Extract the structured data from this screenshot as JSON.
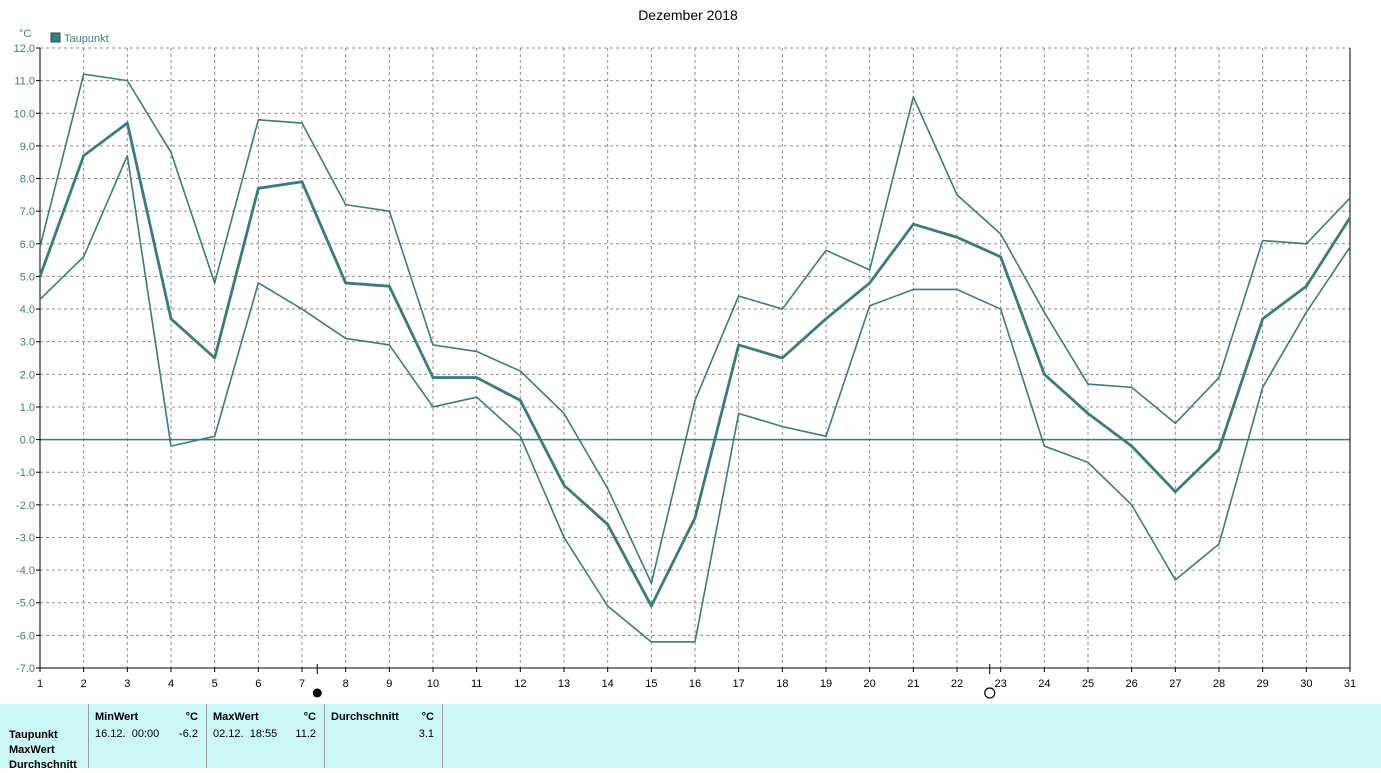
{
  "chart_data": {
    "type": "line",
    "title": "Dezember 2018",
    "ylabel": "°C",
    "legend": "Taupunkt",
    "legend_position": "top-left",
    "grid": true,
    "x": [
      1,
      2,
      3,
      4,
      5,
      6,
      7,
      8,
      9,
      10,
      11,
      12,
      13,
      14,
      15,
      16,
      17,
      18,
      19,
      20,
      21,
      22,
      23,
      24,
      25,
      26,
      27,
      28,
      29,
      30,
      31
    ],
    "xlim": [
      1,
      31
    ],
    "ylim": [
      -7,
      12
    ],
    "yticks": [
      "12.0",
      "11.0",
      "10.0",
      "9.0",
      "8.0",
      "7.0",
      "6.0",
      "5.0",
      "4.0",
      "3.0",
      "2.0",
      "1.0",
      "0.0",
      "-1.0",
      "-2.0",
      "-3.0",
      "-4.0",
      "-5.0",
      "-6.0",
      "-7.0"
    ],
    "series": [
      {
        "name": "Taupunkt",
        "role": "average",
        "values": [
          5.0,
          8.7,
          9.7,
          3.7,
          2.5,
          7.7,
          7.9,
          4.8,
          4.7,
          1.9,
          1.9,
          1.2,
          -1.4,
          -2.6,
          -5.1,
          -2.4,
          2.9,
          2.5,
          3.7,
          4.8,
          6.6,
          6.2,
          5.6,
          2.0,
          0.8,
          -0.2,
          -1.6,
          -0.3,
          3.7,
          4.7,
          6.8
        ]
      },
      {
        "role": "max",
        "values": [
          5.9,
          11.2,
          11.0,
          8.8,
          4.8,
          9.8,
          9.7,
          7.2,
          7.0,
          2.9,
          2.7,
          2.1,
          0.8,
          -1.5,
          -4.4,
          1.2,
          4.4,
          4.0,
          5.8,
          5.2,
          10.5,
          7.5,
          6.3,
          3.9,
          1.7,
          1.6,
          0.5,
          1.9,
          6.1,
          6.0,
          7.4
        ]
      },
      {
        "role": "min",
        "values": [
          4.3,
          5.6,
          8.7,
          -0.2,
          0.1,
          4.8,
          4.0,
          3.1,
          2.9,
          1.0,
          1.3,
          0.1,
          -3.0,
          -5.1,
          -6.2,
          -6.2,
          0.8,
          0.4,
          0.1,
          4.1,
          4.6,
          4.6,
          4.0,
          -0.2,
          -0.7,
          -2.0,
          -4.3,
          -3.2,
          1.6,
          3.9,
          5.9
        ]
      }
    ],
    "markers": [
      {
        "symbol": "filled-circle",
        "position": 7.35
      },
      {
        "symbol": "open-circle",
        "position": 22.75
      }
    ],
    "colors": {
      "series": "#3b7b7b",
      "zero_line": "#3b7b7b",
      "grid": "#8c8c8c",
      "axis": "#000000",
      "panel": "#ccf7f7"
    }
  },
  "summary": {
    "row_labels": [
      "Taupunkt",
      "MaxWert",
      "Durchschnitt"
    ],
    "min": {
      "header": "MinWert",
      "unit": "°C",
      "when": "16.12.  00:00",
      "value": "-6.2"
    },
    "max": {
      "header": "MaxWert",
      "unit": "°C",
      "when": "02.12.  18:55",
      "value": "11.2"
    },
    "avg": {
      "header": "Durchschnitt",
      "unit": "°C",
      "value": "3.1"
    }
  }
}
